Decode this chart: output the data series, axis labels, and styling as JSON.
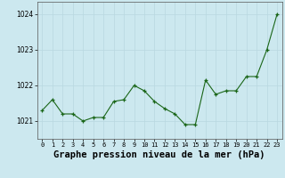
{
  "x": [
    0,
    1,
    2,
    3,
    4,
    5,
    6,
    7,
    8,
    9,
    10,
    11,
    12,
    13,
    14,
    15,
    16,
    17,
    18,
    19,
    20,
    21,
    22,
    23
  ],
  "y": [
    1021.3,
    1021.6,
    1021.2,
    1021.2,
    1021.0,
    1021.1,
    1021.1,
    1021.55,
    1021.6,
    1022.0,
    1021.85,
    1021.55,
    1021.35,
    1021.2,
    1020.9,
    1020.9,
    1022.15,
    1021.75,
    1021.85,
    1021.85,
    1022.25,
    1022.25,
    1023.0,
    1024.0
  ],
  "line_color": "#1a6618",
  "marker_color": "#1a6618",
  "bg_color": "#cce8ef",
  "grid_color": "#b8d8e0",
  "xlabel": "Graphe pression niveau de la mer (hPa)",
  "xlabel_fontsize": 7.5,
  "ylabel_ticks": [
    1021,
    1022,
    1023,
    1024
  ],
  "xlim": [
    -0.5,
    23.5
  ],
  "ylim": [
    1020.5,
    1024.35
  ],
  "xtick_labels": [
    "0",
    "1",
    "2",
    "3",
    "4",
    "5",
    "6",
    "7",
    "8",
    "9",
    "10",
    "11",
    "12",
    "13",
    "14",
    "15",
    "16",
    "17",
    "18",
    "19",
    "20",
    "21",
    "22",
    "23"
  ]
}
